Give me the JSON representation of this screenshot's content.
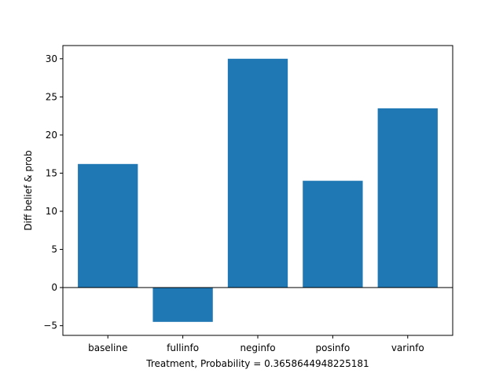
{
  "chart_data": {
    "type": "bar",
    "categories": [
      "baseline",
      "fullinfo",
      "neginfo",
      "posinfo",
      "varinfo"
    ],
    "values": [
      16.2,
      -4.5,
      30.0,
      14.0,
      23.5
    ],
    "title": "",
    "xlabel": "Treatment, Probability = 0.3658644948225181",
    "ylabel": "Diff belief & prob",
    "ylim": [
      -6.27,
      31.73
    ],
    "yticks": [
      -5,
      0,
      5,
      10,
      15,
      20,
      25,
      30
    ],
    "ytick_labels": [
      "−5",
      "0",
      "5",
      "10",
      "15",
      "20",
      "25",
      "30"
    ],
    "bar_color": "#1f77b4",
    "zero_line": true,
    "grid": false,
    "legend": false
  }
}
